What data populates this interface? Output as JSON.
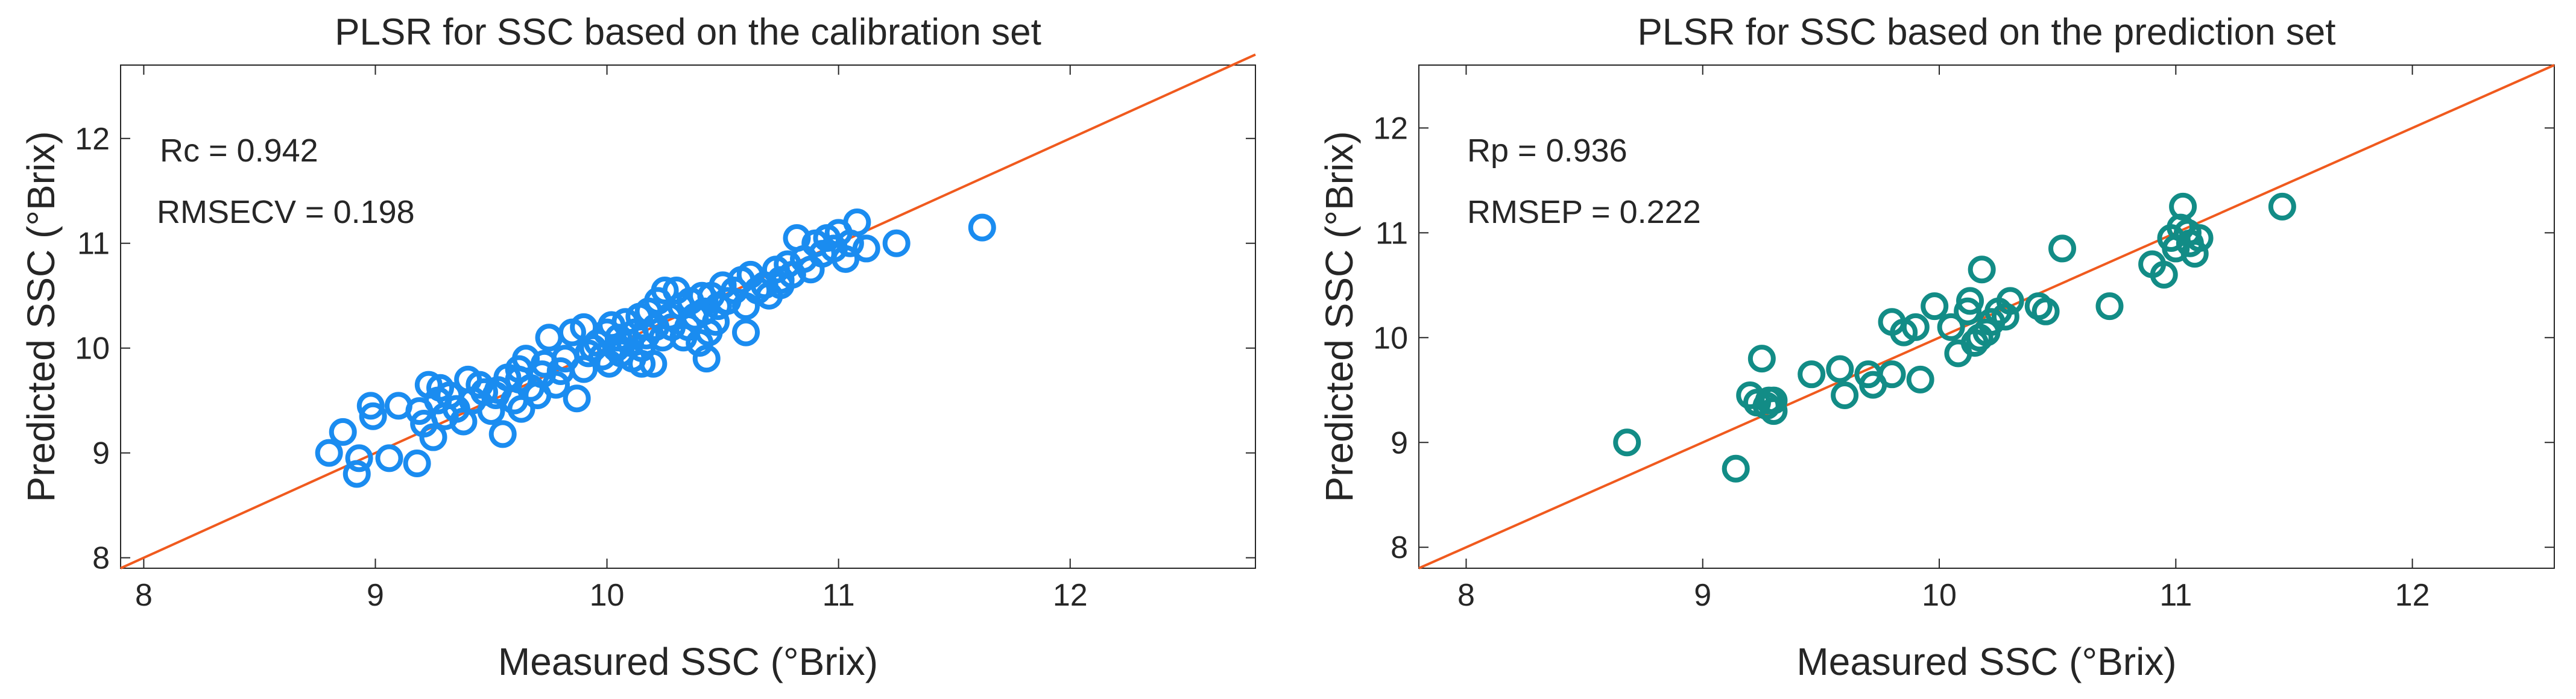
{
  "chart_data": [
    {
      "type": "scatter",
      "title": "PLSR for SSC based on the calibration set",
      "xlabel": "Measured SSC (°Brix)",
      "ylabel": "Predicted SSC (°Brix)",
      "xlim": [
        7.9,
        12.8
      ],
      "ylim": [
        7.9,
        12.7
      ],
      "xticks": [
        8,
        9,
        10,
        11,
        12
      ],
      "yticks": [
        8,
        9,
        10,
        11,
        12
      ],
      "grid": false,
      "annotations": [
        "Rc = 0.942",
        "RMSECV = 0.198"
      ],
      "colors": {
        "points": "#1a8cf0",
        "line": "#f05a1e"
      },
      "reference_line": [
        [
          7.9,
          7.9
        ],
        [
          12.8,
          12.8
        ]
      ],
      "x": [
        8.8,
        8.86,
        8.92,
        8.93,
        8.98,
        8.99,
        9.06,
        9.1,
        9.19,
        9.21,
        9.23,
        9.25,
        9.27,
        9.28,
        9.3,
        9.32,
        9.35,
        9.38,
        9.4,
        9.42,
        9.45,
        9.47,
        9.5,
        9.52,
        9.55,
        9.57,
        9.6,
        9.62,
        9.63,
        9.65,
        9.67,
        9.7,
        9.72,
        9.73,
        9.75,
        9.78,
        9.8,
        9.82,
        9.85,
        9.87,
        9.9,
        9.92,
        9.94,
        9.96,
        9.98,
        10.0,
        10.01,
        10.02,
        10.04,
        10.05,
        10.06,
        10.08,
        10.1,
        10.11,
        10.12,
        10.14,
        10.15,
        10.17,
        10.18,
        10.2,
        10.21,
        10.22,
        10.24,
        10.25,
        10.27,
        10.28,
        10.3,
        10.32,
        10.33,
        10.35,
        10.36,
        10.38,
        10.4,
        10.41,
        10.42,
        10.44,
        10.45,
        10.47,
        10.48,
        10.5,
        10.52,
        10.55,
        10.58,
        10.6,
        10.62,
        10.65,
        10.68,
        10.7,
        10.73,
        10.75,
        10.78,
        10.8,
        10.82,
        10.85,
        10.88,
        10.9,
        10.93,
        10.95,
        10.98,
        11.0,
        11.03,
        11.05,
        11.08,
        11.12,
        11.25,
        11.62,
        9.18,
        9.53,
        9.62,
        10.43,
        10.6,
        10.75,
        10.15,
        9.9
      ],
      "y": [
        9.0,
        9.2,
        8.8,
        8.95,
        9.45,
        9.35,
        8.95,
        9.45,
        9.4,
        9.28,
        9.65,
        9.15,
        9.5,
        9.62,
        9.35,
        9.55,
        9.42,
        9.3,
        9.7,
        9.5,
        9.65,
        9.58,
        9.4,
        9.55,
        9.18,
        9.72,
        9.5,
        9.8,
        9.42,
        9.9,
        9.62,
        9.55,
        9.75,
        9.85,
        10.1,
        9.65,
        9.78,
        9.9,
        10.15,
        9.52,
        9.8,
        9.95,
        10.0,
        10.05,
        9.92,
        10.15,
        9.85,
        10.22,
        10.0,
        10.1,
        9.95,
        10.25,
        10.05,
        9.9,
        10.15,
        10.3,
        10.0,
        10.12,
        10.35,
        9.85,
        10.2,
        10.45,
        10.1,
        10.55,
        10.3,
        10.2,
        10.55,
        10.4,
        10.1,
        10.2,
        10.45,
        10.3,
        10.05,
        10.5,
        10.35,
        10.15,
        10.5,
        10.25,
        10.4,
        10.6,
        10.45,
        10.55,
        10.65,
        10.4,
        10.7,
        10.55,
        10.6,
        10.5,
        10.75,
        10.65,
        10.8,
        10.7,
        11.05,
        10.85,
        10.75,
        11.0,
        10.9,
        11.05,
        10.95,
        11.1,
        10.85,
        11.0,
        11.2,
        10.95,
        11.0,
        11.15,
        8.9,
        9.6,
        9.7,
        9.9,
        10.15,
        10.6,
        9.85,
        10.2
      ]
    },
    {
      "type": "scatter",
      "title": "PLSR for SSC based on the prediction set",
      "xlabel": "Measured SSC (°Brix)",
      "ylabel": "Predicted SSC (°Brix)",
      "xlim": [
        7.8,
        12.6
      ],
      "ylim": [
        7.8,
        12.6
      ],
      "xticks": [
        8,
        9,
        10,
        11,
        12
      ],
      "yticks": [
        8,
        9,
        10,
        11,
        12
      ],
      "grid": false,
      "annotations": [
        "Rp = 0.936",
        "RMSEP = 0.222"
      ],
      "colors": {
        "points": "#128c86",
        "line": "#f05a1e"
      },
      "reference_line": [
        [
          7.8,
          7.8
        ],
        [
          12.6,
          12.6
        ]
      ],
      "x": [
        8.68,
        9.14,
        9.2,
        9.23,
        9.25,
        9.27,
        9.28,
        9.3,
        9.3,
        9.46,
        9.58,
        9.6,
        9.7,
        9.72,
        9.8,
        9.8,
        9.85,
        9.9,
        9.92,
        9.98,
        10.05,
        10.08,
        10.12,
        10.13,
        10.15,
        10.17,
        10.18,
        10.2,
        10.22,
        10.25,
        10.28,
        10.3,
        10.42,
        10.45,
        10.52,
        10.72,
        10.9,
        10.95,
        10.98,
        11.0,
        11.02,
        11.03,
        11.05,
        11.06,
        11.08,
        11.1,
        11.45
      ],
      "y": [
        9.0,
        8.75,
        9.45,
        9.38,
        9.8,
        9.35,
        9.4,
        9.3,
        9.4,
        9.65,
        9.7,
        9.45,
        9.65,
        9.55,
        9.65,
        10.15,
        10.05,
        10.1,
        9.6,
        10.3,
        10.1,
        9.85,
        10.25,
        10.35,
        9.95,
        10.0,
        10.65,
        10.05,
        10.15,
        10.25,
        10.2,
        10.35,
        10.3,
        10.25,
        10.85,
        10.3,
        10.7,
        10.6,
        10.95,
        10.85,
        11.05,
        11.25,
        11.0,
        10.9,
        10.8,
        10.95,
        11.25
      ]
    }
  ]
}
